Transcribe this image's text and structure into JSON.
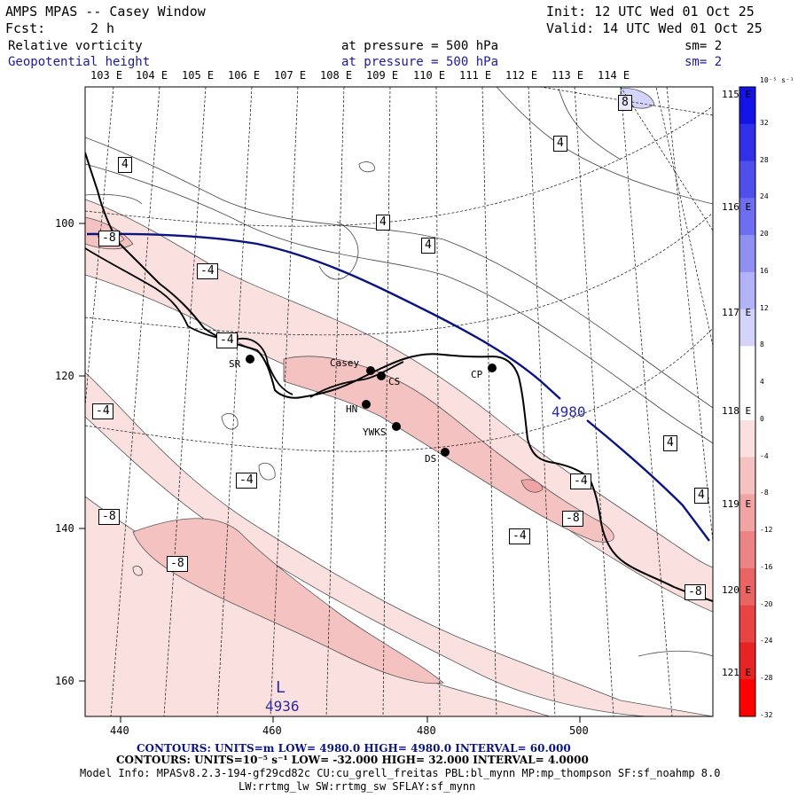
{
  "header": {
    "title": "AMPS MPAS -- Casey Window",
    "init": "Init: 12 UTC Wed 01 Oct 25",
    "fcst_label": "Fcst:",
    "fcst_value": "2 h",
    "valid": "Valid: 14 UTC Wed 01 Oct 25",
    "field1_name": "Relative vorticity",
    "field1_level": "at pressure =  500 hPa",
    "field1_sm": "sm= 2",
    "field2_name": "Geopotential height",
    "field2_level": "at pressure =  500 hPa",
    "field2_sm": "sm= 2"
  },
  "map": {
    "top_lon_labels": [
      "103 E",
      "104 E",
      "105 E",
      "106 E",
      "107 E",
      "108 E",
      "109 E",
      "110 E",
      "111 E",
      "112 E",
      "113 E",
      "114 E"
    ],
    "right_lon_labels": [
      "115 E",
      "116 E",
      "117 E",
      "118 E",
      "119 E",
      "120 E",
      "121 E"
    ],
    "x_ticks": [
      "440",
      "460",
      "480",
      "500"
    ],
    "y_ticks": [
      "100",
      "120",
      "140",
      "160"
    ],
    "stations": [
      {
        "name": "SR"
      },
      {
        "name": "Casey"
      },
      {
        "name": "CS"
      },
      {
        "name": "HN"
      },
      {
        "name": "YWKS"
      },
      {
        "name": "DS"
      },
      {
        "name": "CP"
      }
    ],
    "vort_labels": [
      "8",
      "4",
      "4",
      "4",
      "4",
      "-8",
      "-4",
      "-4",
      "-4",
      "-4",
      "-4",
      "-4",
      "-8",
      "-8",
      "-8",
      "4",
      "4",
      "-8"
    ],
    "height_contour_label": "4980",
    "low_label": "L",
    "low_value": "4936"
  },
  "colorbar": {
    "units": "10⁻⁵ s⁻¹",
    "ticks": [
      "32",
      "28",
      "24",
      "20",
      "16",
      "12",
      "8",
      "4",
      "0",
      "-4",
      "-8",
      "-12",
      "-16",
      "-20",
      "-24",
      "-28",
      "-32"
    ],
    "colors": [
      "#1414e6",
      "#3030e8",
      "#4f4fec",
      "#6e6ef0",
      "#9090f2",
      "#b2b2f6",
      "#d4d4fa",
      "#ffffff",
      "#ffffff",
      "#fbe0e0",
      "#f5c2c2",
      "#f0a4a4",
      "#ec8484",
      "#ea6464",
      "#e84444",
      "#e62424",
      "#ff0000"
    ]
  },
  "footer": {
    "contours1": "CONTOURS:  UNITS=m  LOW=  4980.0          HIGH=  4980.0          INTERVAL=   60.000",
    "contours2": "CONTOURS:  UNITS=10⁻⁵ s⁻¹  LOW= -32.000       HIGH=  32.000       INTERVAL=   4.0000",
    "model_info": "Model Info: MPASv8.2.3-194-gf29cd82c CU:cu_grell_freitas PBL:bl_mynn MP:mp_thompson SF:sf_noahmp 8.0",
    "model_info2": "LW:rrtmg_lw SW:rrtmg_sw SFLAY:sf_mynn"
  }
}
